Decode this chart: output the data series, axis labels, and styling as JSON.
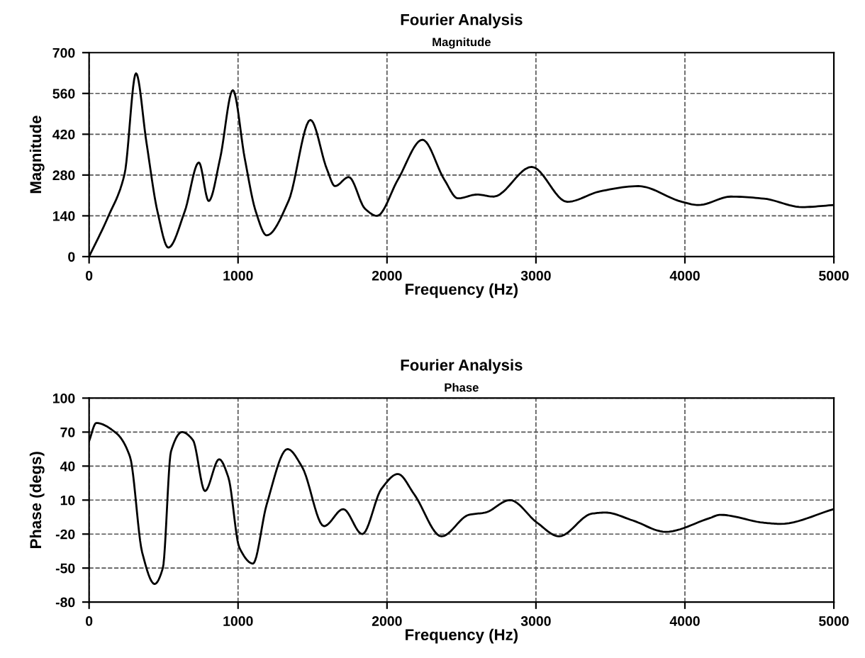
{
  "chart_data": [
    {
      "type": "line",
      "title": "Fourier Analysis",
      "subtitle": "Magnitude",
      "xlabel": "Frequency (Hz)",
      "ylabel": "Magnitude",
      "xlim": [
        0,
        5000
      ],
      "xticks": [
        0,
        1000,
        2000,
        3000,
        4000,
        5000
      ],
      "ylim": [
        0,
        700
      ],
      "yticks": [
        0,
        140,
        280,
        420,
        560,
        700
      ],
      "grid": true,
      "line_style": "solid",
      "series": [
        {
          "color": "#000000",
          "x": [
            0,
            128,
            238,
            315,
            385,
            459,
            532,
            642,
            737,
            803,
            880,
            965,
            1045,
            1119,
            1192,
            1339,
            1486,
            1596,
            1651,
            1743,
            1853,
            1933,
            2073,
            2238,
            2385,
            2476,
            2605,
            2715,
            2971,
            3210,
            3430,
            3687,
            3980,
            4090,
            4310,
            4530,
            4787,
            5000
          ],
          "values": [
            0,
            137,
            283,
            629,
            392,
            155,
            31,
            155,
            323,
            191,
            338,
            571,
            337,
            155,
            73,
            191,
            469,
            301,
            242,
            273,
            164,
            140,
            264,
            401,
            264,
            200,
            213,
            206,
            308,
            188,
            224,
            242,
            188,
            177,
            206,
            199,
            170,
            177
          ]
        }
      ]
    },
    {
      "type": "line",
      "title": "Fourier Analysis",
      "subtitle": "Phase",
      "xlabel": "Frequency (Hz)",
      "ylabel": "Phase (degs)",
      "xlim": [
        0,
        5000
      ],
      "xticks": [
        0,
        1000,
        2000,
        3000,
        4000,
        5000
      ],
      "ylim": [
        -80,
        100
      ],
      "yticks": [
        -80,
        -50,
        -20,
        10,
        40,
        70,
        100
      ],
      "grid": true,
      "line_style": "solid",
      "series": [
        {
          "color": "#000000",
          "x": [
            0,
            48,
            183,
            275,
            356,
            440,
            495,
            550,
            624,
            697,
            778,
            873,
            935,
            1009,
            1100,
            1192,
            1332,
            1431,
            1577,
            1706,
            1834,
            1963,
            2073,
            2183,
            2366,
            2550,
            2660,
            2825,
            3008,
            3155,
            3375,
            3467,
            3650,
            3870,
            4164,
            4237,
            4530,
            4640,
            5000
          ],
          "values": [
            62,
            78,
            69,
            48,
            -36,
            -64,
            -50,
            53,
            70,
            63,
            18,
            46,
            30,
            -32,
            -46,
            6,
            55,
            39,
            -13,
            2,
            -20,
            20,
            33,
            15,
            -22,
            -3,
            -1,
            10,
            -10,
            -22,
            -2,
            -1,
            -8,
            -18,
            -6,
            -3,
            -10,
            -11,
            2
          ]
        }
      ]
    }
  ]
}
